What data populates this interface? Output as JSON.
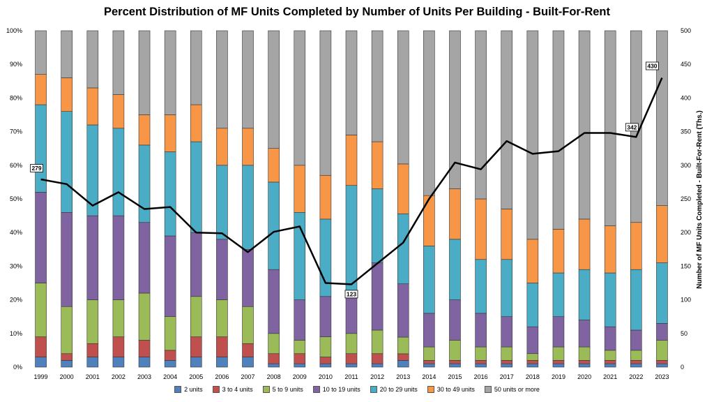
{
  "chart_data": {
    "type": "bar",
    "subtype": "stacked-100-percent-with-line",
    "title": "Percent Distribution of MF Units Completed by Number of Units Per Building - Built-For-Rent",
    "xlabel": "",
    "ylabel": "",
    "ylabel_right": "Number of MF Units Completed - Built-For-Rent (Ths.)",
    "ylim": [
      0,
      100
    ],
    "ylim_right": [
      0,
      500
    ],
    "y_ticks": [
      "0%",
      "10%",
      "20%",
      "30%",
      "40%",
      "50%",
      "60%",
      "70%",
      "80%",
      "90%",
      "100%"
    ],
    "y_right_ticks": [
      "0",
      "50",
      "100",
      "150",
      "200",
      "250",
      "300",
      "350",
      "400",
      "450",
      "500"
    ],
    "categories": [
      "1999",
      "2000",
      "2001",
      "2002",
      "2003",
      "2004",
      "2005",
      "2006",
      "2007",
      "2008",
      "2009",
      "2010",
      "2011",
      "2012",
      "2013",
      "2014",
      "2015",
      "2016",
      "2017",
      "2018",
      "2019",
      "2020",
      "2021",
      "2022",
      "2023"
    ],
    "series": [
      {
        "name": "2 units",
        "color": "#4f81bd",
        "values": [
          3,
          2,
          3,
          3,
          3,
          2,
          3,
          3,
          3,
          1,
          1,
          1,
          1,
          1,
          2,
          1,
          1,
          1,
          1,
          1,
          1,
          1,
          1,
          1,
          1
        ]
      },
      {
        "name": "3 to 4 units",
        "color": "#c0504d",
        "values": [
          6,
          2,
          4,
          6,
          5,
          3,
          6,
          6,
          4,
          3,
          3,
          2,
          3,
          3,
          2,
          1,
          1,
          1,
          1,
          1,
          1,
          1,
          1,
          1,
          1
        ]
      },
      {
        "name": "5 to 9 units",
        "color": "#9bbb59",
        "values": [
          16,
          14,
          13,
          11,
          14,
          10,
          12,
          11,
          11,
          6,
          4,
          6,
          6,
          7,
          5,
          4,
          6,
          4,
          4,
          2,
          4,
          4,
          3,
          3,
          6
        ]
      },
      {
        "name": "10 to 19 units",
        "color": "#8064a2",
        "values": [
          27,
          28,
          25,
          25,
          21,
          24,
          19,
          18,
          17,
          19,
          12,
          12,
          11,
          20,
          16,
          10,
          12,
          10,
          9,
          8,
          9,
          8,
          7,
          6,
          5
        ]
      },
      {
        "name": "20 to 29 units",
        "color": "#4bacc6",
        "values": [
          26,
          30,
          27,
          26,
          23,
          25,
          27,
          22,
          25,
          26,
          26,
          23,
          33,
          22,
          21,
          20,
          18,
          16,
          17,
          13,
          13,
          15,
          16,
          18,
          18
        ]
      },
      {
        "name": "30 to 49 units",
        "color": "#f79646",
        "values": [
          9,
          10,
          11,
          10,
          9,
          11,
          11,
          11,
          11,
          10,
          14,
          13,
          15,
          14,
          15,
          15,
          15,
          18,
          15,
          13,
          13,
          15,
          14,
          14,
          17
        ]
      },
      {
        "name": "50 units or more",
        "color": "#a5a5a5",
        "values": [
          13,
          14,
          17,
          19,
          25,
          25,
          22,
          29,
          29,
          35,
          40,
          43,
          31,
          33,
          40,
          49,
          47,
          50,
          53,
          62,
          59,
          56,
          58,
          57,
          52
        ]
      }
    ],
    "line_series": {
      "name": "",
      "color": "#000000",
      "values": [
        279,
        272,
        240,
        260,
        235,
        238,
        200,
        199,
        171,
        201,
        209,
        125,
        123,
        154,
        185,
        250,
        304,
        294,
        336,
        317,
        321,
        348,
        348,
        342,
        430
      ],
      "labeled_points": [
        {
          "index": 0,
          "label": "279"
        },
        {
          "index": 12,
          "label": "123"
        },
        {
          "index": 23,
          "label": "342"
        },
        {
          "index": 24,
          "label": "430"
        }
      ]
    },
    "legend_position": "bottom",
    "grid": false
  }
}
